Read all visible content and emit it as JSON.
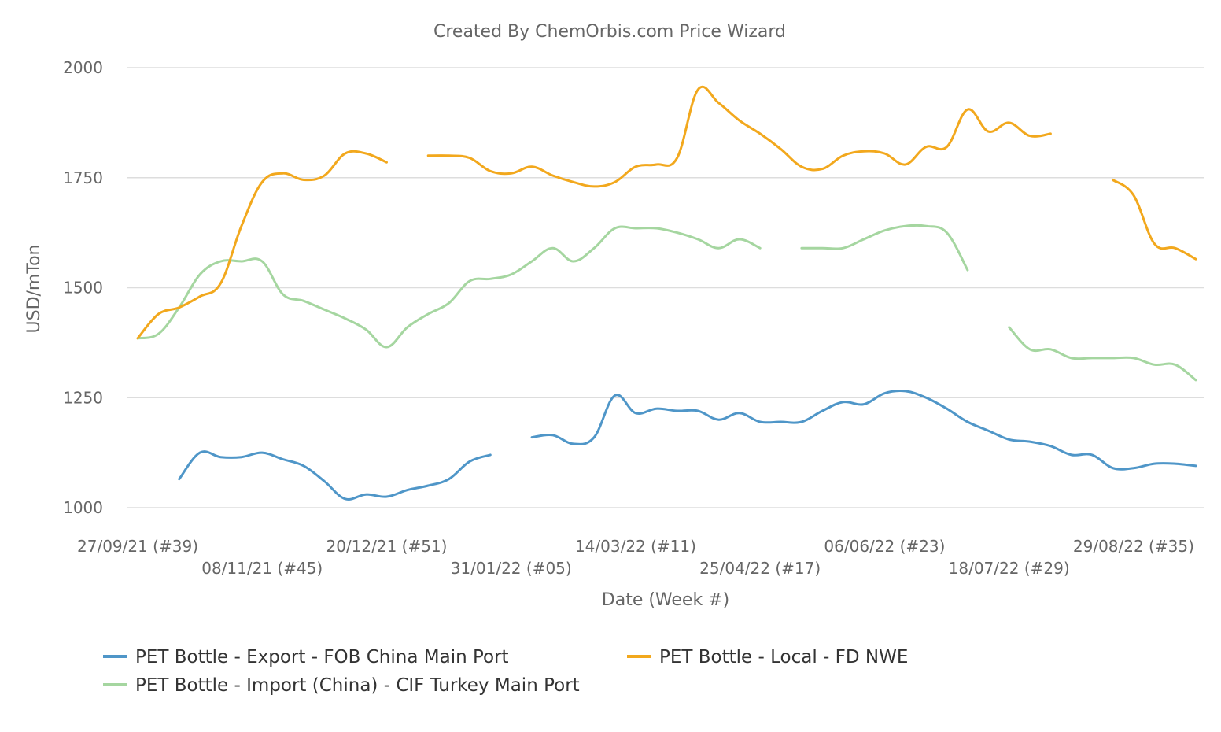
{
  "chart_data": {
    "type": "line",
    "title": "Created By ChemOrbis.com Price Wizard",
    "xlabel": "Date (Week #)",
    "ylabel": "USD/mTon",
    "ylim": [
      1000,
      2000
    ],
    "yticks": [
      "1000",
      "1250",
      "1500",
      "1750",
      "2000"
    ],
    "grid": true,
    "legend_position": "bottom",
    "x_unit": "week",
    "xticks": [
      {
        "label": "27/09/21 (#39)",
        "x": 0
      },
      {
        "label": "08/11/21 (#45)",
        "x": 6
      },
      {
        "label": "20/12/21 (#51)",
        "x": 12
      },
      {
        "label": "31/01/22 (#05)",
        "x": 18
      },
      {
        "label": "14/03/22 (#11)",
        "x": 24
      },
      {
        "label": "25/04/22 (#17)",
        "x": 30
      },
      {
        "label": "06/06/22 (#23)",
        "x": 36
      },
      {
        "label": "18/07/22 (#29)",
        "x": 42
      },
      {
        "label": "29/08/22 (#35)",
        "x": 48
      }
    ],
    "series": [
      {
        "name": "PET Bottle - Export - FOB China Main Port",
        "color": "#4f96c8",
        "segments": [
          [
            [
              2,
              1065
            ],
            [
              3,
              1125
            ],
            [
              4,
              1115
            ],
            [
              5,
              1115
            ],
            [
              6,
              1125
            ],
            [
              7,
              1110
            ],
            [
              8,
              1095
            ],
            [
              9,
              1060
            ],
            [
              10,
              1020
            ],
            [
              11,
              1030
            ],
            [
              12,
              1025
            ],
            [
              13,
              1040
            ],
            [
              14,
              1050
            ],
            [
              15,
              1065
            ],
            [
              16,
              1105
            ],
            [
              17,
              1120
            ]
          ],
          [
            [
              19,
              1160
            ],
            [
              20,
              1165
            ],
            [
              21,
              1145
            ],
            [
              22,
              1160
            ],
            [
              23,
              1255
            ],
            [
              24,
              1215
            ],
            [
              25,
              1225
            ],
            [
              26,
              1220
            ],
            [
              27,
              1220
            ],
            [
              28,
              1200
            ],
            [
              29,
              1215
            ],
            [
              30,
              1195
            ],
            [
              31,
              1195
            ],
            [
              32,
              1195
            ],
            [
              33,
              1220
            ],
            [
              34,
              1240
            ],
            [
              35,
              1235
            ],
            [
              36,
              1260
            ],
            [
              37,
              1265
            ],
            [
              38,
              1250
            ],
            [
              39,
              1225
            ],
            [
              40,
              1195
            ],
            [
              41,
              1175
            ],
            [
              42,
              1155
            ],
            [
              43,
              1150
            ],
            [
              44,
              1140
            ],
            [
              45,
              1120
            ],
            [
              46,
              1120
            ],
            [
              47,
              1090
            ],
            [
              48,
              1090
            ],
            [
              49,
              1100
            ],
            [
              50,
              1100
            ],
            [
              51,
              1095
            ]
          ]
        ]
      },
      {
        "name": "PET Bottle - Import (China) - CIF Turkey Main Port",
        "color": "#a5d6a0",
        "segments": [
          [
            [
              0,
              1385
            ],
            [
              1,
              1395
            ],
            [
              2,
              1455
            ],
            [
              3,
              1530
            ],
            [
              4,
              1560
            ],
            [
              5,
              1560
            ],
            [
              6,
              1560
            ],
            [
              7,
              1485
            ],
            [
              8,
              1470
            ],
            [
              9,
              1450
            ],
            [
              10,
              1430
            ],
            [
              11,
              1405
            ],
            [
              12,
              1365
            ],
            [
              13,
              1410
            ],
            [
              14,
              1440
            ],
            [
              15,
              1465
            ],
            [
              16,
              1515
            ],
            [
              17,
              1520
            ],
            [
              18,
              1530
            ],
            [
              19,
              1560
            ],
            [
              20,
              1590
            ],
            [
              21,
              1560
            ],
            [
              22,
              1590
            ],
            [
              23,
              1635
            ],
            [
              24,
              1635
            ],
            [
              25,
              1635
            ],
            [
              26,
              1625
            ],
            [
              27,
              1610
            ],
            [
              28,
              1590
            ],
            [
              29,
              1610
            ],
            [
              30,
              1590
            ]
          ],
          [
            [
              32,
              1590
            ],
            [
              33,
              1590
            ],
            [
              34,
              1590
            ],
            [
              35,
              1610
            ],
            [
              36,
              1630
            ],
            [
              37,
              1640
            ],
            [
              38,
              1640
            ],
            [
              39,
              1625
            ],
            [
              40,
              1540
            ]
          ],
          [
            [
              42,
              1410
            ],
            [
              43,
              1360
            ],
            [
              44,
              1360
            ],
            [
              45,
              1340
            ],
            [
              46,
              1340
            ],
            [
              47,
              1340
            ],
            [
              48,
              1340
            ],
            [
              49,
              1325
            ],
            [
              50,
              1325
            ],
            [
              51,
              1290
            ]
          ]
        ]
      },
      {
        "name": "PET Bottle - Local - FD NWE",
        "color": "#f2a81d",
        "segments": [
          [
            [
              0,
              1385
            ],
            [
              1,
              1440
            ],
            [
              2,
              1455
            ],
            [
              3,
              1480
            ],
            [
              4,
              1510
            ],
            [
              5,
              1640
            ],
            [
              6,
              1740
            ],
            [
              7,
              1760
            ],
            [
              8,
              1745
            ],
            [
              9,
              1755
            ],
            [
              10,
              1805
            ],
            [
              11,
              1805
            ],
            [
              12,
              1785
            ]
          ],
          [
            [
              14,
              1800
            ],
            [
              15,
              1800
            ],
            [
              16,
              1795
            ],
            [
              17,
              1765
            ],
            [
              18,
              1760
            ],
            [
              19,
              1775
            ],
            [
              20,
              1755
            ],
            [
              21,
              1740
            ],
            [
              22,
              1730
            ],
            [
              23,
              1740
            ],
            [
              24,
              1775
            ],
            [
              25,
              1780
            ],
            [
              26,
              1795
            ],
            [
              27,
              1950
            ],
            [
              28,
              1920
            ],
            [
              29,
              1880
            ],
            [
              30,
              1850
            ],
            [
              31,
              1815
            ],
            [
              32,
              1775
            ],
            [
              33,
              1770
            ],
            [
              34,
              1800
            ],
            [
              35,
              1810
            ],
            [
              36,
              1805
            ],
            [
              37,
              1780
            ],
            [
              38,
              1820
            ],
            [
              39,
              1820
            ],
            [
              40,
              1905
            ],
            [
              41,
              1855
            ],
            [
              42,
              1875
            ],
            [
              43,
              1845
            ],
            [
              44,
              1850
            ]
          ],
          [
            [
              47,
              1745
            ],
            [
              48,
              1710
            ],
            [
              49,
              1600
            ],
            [
              50,
              1590
            ],
            [
              51,
              1565
            ]
          ]
        ]
      }
    ]
  }
}
